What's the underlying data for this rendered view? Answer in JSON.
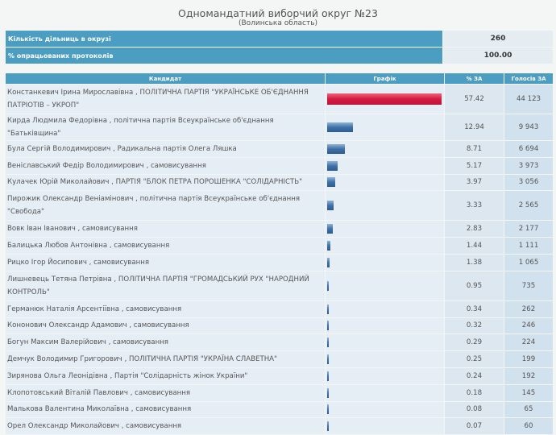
{
  "header": {
    "title": "Одномандатний виборчий округ №23",
    "region": "(Волинська область)"
  },
  "info": [
    {
      "label": "Кількість дільниць в окрузі",
      "value": "260"
    },
    {
      "label": "% опрацьованих протоколів",
      "value": "100.00"
    }
  ],
  "columns": {
    "candidate": "Кандидат",
    "chart": "Графік",
    "pct": "% ЗА",
    "votes": "Голосів ЗА"
  },
  "colors": {
    "leader": "#d41b40",
    "other": "#3f70a6",
    "header": "#4b9dc2"
  },
  "rows": [
    {
      "name": "Констанкевич Ірина Мирославівна , ПОЛІТИЧНА ПАРТІЯ \"УКРАЇНСЬКЕ ОБ'ЄДНАННЯ ПАТРІОТІВ – УКРОП\"",
      "pct": "57.42",
      "votes": "44 123",
      "value": 57.42
    },
    {
      "name": "Кирда Людмила Федорівна , політична партія Всеукраїнське об'єднання \"Батьківщина\"",
      "pct": "12.94",
      "votes": "9 943",
      "value": 12.94
    },
    {
      "name": "Була Сергій Володимирович , Радикальна партія Олега Ляшка",
      "pct": "8.71",
      "votes": "6 694",
      "value": 8.71
    },
    {
      "name": "Веніславський Федір Володимирович , самовисування",
      "pct": "5.17",
      "votes": "3 973",
      "value": 5.17
    },
    {
      "name": "Кулачек Юрій Миколайович , ПАРТІЯ \"БЛОК ПЕТРА ПОРОШЕНКА \"СОЛІДАРНІСТЬ\"",
      "pct": "3.97",
      "votes": "3 056",
      "value": 3.97
    },
    {
      "name": "Пирожик Олександр Веніамінович , політична партія Всеукраїнське об'єднання \"Свобода\"",
      "pct": "3.33",
      "votes": "2 565",
      "value": 3.33
    },
    {
      "name": "Вовк Іван Іванович , самовисування",
      "pct": "2.83",
      "votes": "2 177",
      "value": 2.83
    },
    {
      "name": "Балицька Любов Антонівна , самовисування",
      "pct": "1.44",
      "votes": "1 111",
      "value": 1.44
    },
    {
      "name": "Рицко Ігор Йосипович , самовисування",
      "pct": "1.38",
      "votes": "1 065",
      "value": 1.38
    },
    {
      "name": "Лишневець Тетяна Петрівна , ПОЛІТИЧНА ПАРТІЯ \"ГРОМАДСЬКИЙ РУХ \"НАРОДНИЙ КОНТРОЛЬ\"",
      "pct": "0.95",
      "votes": "735",
      "value": 0.95
    },
    {
      "name": "Германюк Наталія Арсентіївна , самовисування",
      "pct": "0.34",
      "votes": "262",
      "value": 0.34
    },
    {
      "name": "Кононович Олександр Адамович , самовисування",
      "pct": "0.32",
      "votes": "246",
      "value": 0.32
    },
    {
      "name": "Богун Максим Валерійович , самовисування",
      "pct": "0.29",
      "votes": "224",
      "value": 0.29
    },
    {
      "name": "Демчук Володимир Григорович , ПОЛІТИЧНА ПАРТІЯ \"УКРАЇНА СЛАВЕТНА\"",
      "pct": "0.25",
      "votes": "199",
      "value": 0.25
    },
    {
      "name": "Зирянова Ольга Леонідівна , Партія \"Солідарність жінок України\"",
      "pct": "0.24",
      "votes": "192",
      "value": 0.24
    },
    {
      "name": "Клопотовський Віталій Павлович , самовисування",
      "pct": "0.18",
      "votes": "145",
      "value": 0.18
    },
    {
      "name": "Малькова Валентина Миколаївна , самовисування",
      "pct": "0.08",
      "votes": "65",
      "value": 0.08
    },
    {
      "name": "Орел Олександр Миколайович , самовисування",
      "pct": "0.07",
      "votes": "60",
      "value": 0.07
    }
  ]
}
